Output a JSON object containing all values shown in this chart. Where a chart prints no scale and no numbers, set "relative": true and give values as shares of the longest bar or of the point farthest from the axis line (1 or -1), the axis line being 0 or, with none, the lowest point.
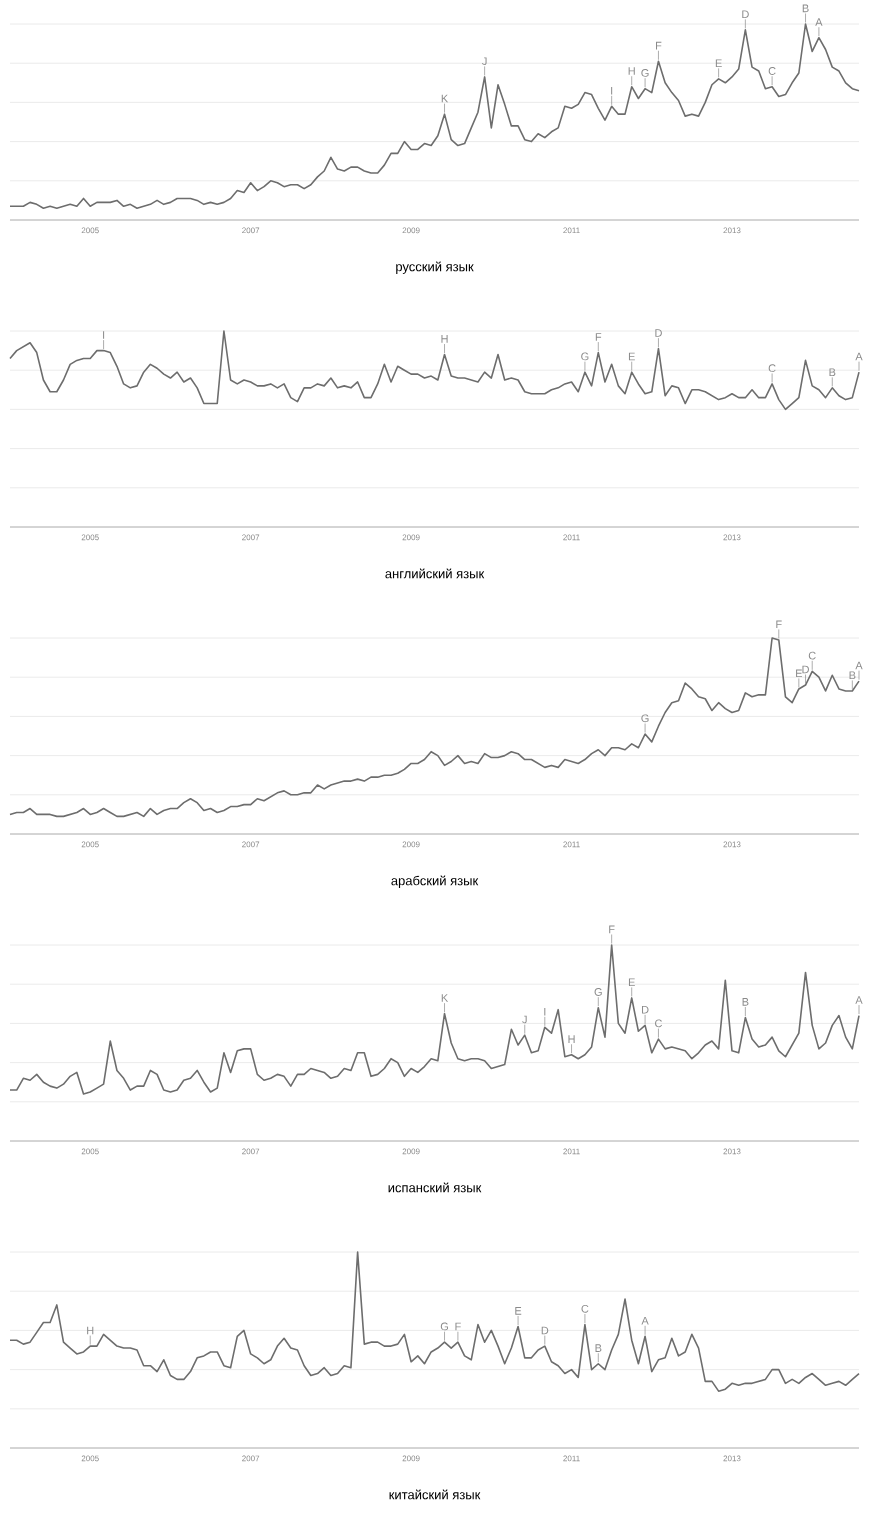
{
  "chart_data": [
    {
      "type": "line",
      "title": "русский язык",
      "relative": true,
      "grid": "y",
      "color": "#6d6d6d",
      "xlim": [
        "2004-01",
        "2014-08"
      ],
      "xticks": [
        "2005",
        "2007",
        "2009",
        "2011",
        "2013"
      ],
      "x": [
        "2004-01",
        "2004-02",
        "2004-03",
        "2004-04",
        "2004-05",
        "2004-06",
        "2004-07",
        "2004-08",
        "2004-09",
        "2004-10",
        "2004-11",
        "2004-12",
        "2005-01",
        "2005-02",
        "2005-03",
        "2005-04",
        "2005-05",
        "2005-06",
        "2005-07",
        "2005-08",
        "2005-09",
        "2005-10",
        "2005-11",
        "2005-12",
        "2006-01",
        "2006-02",
        "2006-03",
        "2006-04",
        "2006-05",
        "2006-06",
        "2006-07",
        "2006-08",
        "2006-09",
        "2006-10",
        "2006-11",
        "2006-12",
        "2007-01",
        "2007-02",
        "2007-03",
        "2007-04",
        "2007-05",
        "2007-06",
        "2007-07",
        "2007-08",
        "2007-09",
        "2007-10",
        "2007-11",
        "2007-12",
        "2008-01",
        "2008-02",
        "2008-03",
        "2008-04",
        "2008-05",
        "2008-06",
        "2008-07",
        "2008-08",
        "2008-09",
        "2008-10",
        "2008-11",
        "2008-12",
        "2009-01",
        "2009-02",
        "2009-03",
        "2009-04",
        "2009-05",
        "2009-06",
        "2009-07",
        "2009-08",
        "2009-09",
        "2009-10",
        "2009-11",
        "2009-12",
        "2010-01",
        "2010-02",
        "2010-03",
        "2010-04",
        "2010-05",
        "2010-06",
        "2010-07",
        "2010-08",
        "2010-09",
        "2010-10",
        "2010-11",
        "2010-12",
        "2011-01",
        "2011-02",
        "2011-03",
        "2011-04",
        "2011-05",
        "2011-06",
        "2011-07",
        "2011-08",
        "2011-09",
        "2011-10",
        "2011-11",
        "2011-12",
        "2012-01",
        "2012-02",
        "2012-03",
        "2012-04",
        "2012-05",
        "2012-06",
        "2012-07",
        "2012-08",
        "2012-09",
        "2012-10",
        "2012-11",
        "2012-12",
        "2013-01",
        "2013-02",
        "2013-03",
        "2013-04",
        "2013-05",
        "2013-06",
        "2013-07",
        "2013-08",
        "2013-09",
        "2013-10",
        "2013-11",
        "2013-12",
        "2014-01",
        "2014-02",
        "2014-03",
        "2014-04",
        "2014-05",
        "2014-06",
        "2014-07",
        "2014-08"
      ],
      "values": [
        0.07,
        0.07,
        0.07,
        0.09,
        0.08,
        0.06,
        0.07,
        0.06,
        0.07,
        0.08,
        0.07,
        0.11,
        0.07,
        0.09,
        0.09,
        0.09,
        0.1,
        0.07,
        0.08,
        0.06,
        0.07,
        0.08,
        0.1,
        0.08,
        0.09,
        0.11,
        0.11,
        0.11,
        0.1,
        0.08,
        0.09,
        0.08,
        0.09,
        0.11,
        0.15,
        0.14,
        0.19,
        0.15,
        0.17,
        0.2,
        0.19,
        0.17,
        0.18,
        0.18,
        0.16,
        0.18,
        0.22,
        0.25,
        0.32,
        0.26,
        0.25,
        0.27,
        0.27,
        0.25,
        0.24,
        0.24,
        0.28,
        0.34,
        0.34,
        0.4,
        0.36,
        0.36,
        0.39,
        0.38,
        0.43,
        0.54,
        0.41,
        0.38,
        0.39,
        0.47,
        0.55,
        0.73,
        0.47,
        0.69,
        0.59,
        0.48,
        0.48,
        0.41,
        0.4,
        0.44,
        0.42,
        0.45,
        0.47,
        0.58,
        0.57,
        0.59,
        0.65,
        0.64,
        0.57,
        0.51,
        0.58,
        0.54,
        0.54,
        0.68,
        0.62,
        0.67,
        0.65,
        0.81,
        0.7,
        0.65,
        0.61,
        0.53,
        0.54,
        0.53,
        0.6,
        0.69,
        0.72,
        0.7,
        0.73,
        0.77,
        0.97,
        0.78,
        0.76,
        0.67,
        0.68,
        0.63,
        0.64,
        0.7,
        0.75,
        1.0,
        0.86,
        0.93,
        0.87,
        0.78,
        0.76,
        0.7,
        0.67,
        0.66
      ],
      "annotations": [
        {
          "text": "K",
          "x": "2009-06",
          "y": 0.54
        },
        {
          "text": "J",
          "x": "2009-12",
          "y": 0.73
        },
        {
          "text": "I",
          "x": "2011-07",
          "y": 0.58
        },
        {
          "text": "H",
          "x": "2011-10",
          "y": 0.68
        },
        {
          "text": "G",
          "x": "2011-12",
          "y": 0.67
        },
        {
          "text": "F",
          "x": "2012-02",
          "y": 0.81
        },
        {
          "text": "E",
          "x": "2012-11",
          "y": 0.72
        },
        {
          "text": "D",
          "x": "2013-03",
          "y": 0.97
        },
        {
          "text": "C",
          "x": "2013-07",
          "y": 0.68
        },
        {
          "text": "B",
          "x": "2013-12",
          "y": 1.0
        },
        {
          "text": "A",
          "x": "2014-02",
          "y": 0.93
        }
      ]
    },
    {
      "type": "line",
      "title": "английский язык",
      "relative": true,
      "grid": "y",
      "color": "#6d6d6d",
      "xlim": [
        "2004-01",
        "2014-08"
      ],
      "xticks": [
        "2005",
        "2007",
        "2009",
        "2011",
        "2013"
      ],
      "x": [
        "2004-01",
        "2004-02",
        "2004-03",
        "2004-04",
        "2004-05",
        "2004-06",
        "2004-07",
        "2004-08",
        "2004-09",
        "2004-10",
        "2004-11",
        "2004-12",
        "2005-01",
        "2005-02",
        "2005-03",
        "2005-04",
        "2005-05",
        "2005-06",
        "2005-07",
        "2005-08",
        "2005-09",
        "2005-10",
        "2005-11",
        "2005-12",
        "2006-01",
        "2006-02",
        "2006-03",
        "2006-04",
        "2006-05",
        "2006-06",
        "2006-07",
        "2006-08",
        "2006-09",
        "2006-10",
        "2006-11",
        "2006-12",
        "2007-01",
        "2007-02",
        "2007-03",
        "2007-04",
        "2007-05",
        "2007-06",
        "2007-07",
        "2007-08",
        "2007-09",
        "2007-10",
        "2007-11",
        "2007-12",
        "2008-01",
        "2008-02",
        "2008-03",
        "2008-04",
        "2008-05",
        "2008-06",
        "2008-07",
        "2008-08",
        "2008-09",
        "2008-10",
        "2008-11",
        "2008-12",
        "2009-01",
        "2009-02",
        "2009-03",
        "2009-04",
        "2009-05",
        "2009-06",
        "2009-07",
        "2009-08",
        "2009-09",
        "2009-10",
        "2009-11",
        "2009-12",
        "2010-01",
        "2010-02",
        "2010-03",
        "2010-04",
        "2010-05",
        "2010-06",
        "2010-07",
        "2010-08",
        "2010-09",
        "2010-10",
        "2010-11",
        "2010-12",
        "2011-01",
        "2011-02",
        "2011-03",
        "2011-04",
        "2011-05",
        "2011-06",
        "2011-07",
        "2011-08",
        "2011-09",
        "2011-10",
        "2011-11",
        "2011-12",
        "2012-01",
        "2012-02",
        "2012-03",
        "2012-04",
        "2012-05",
        "2012-06",
        "2012-07",
        "2012-08",
        "2012-09",
        "2012-10",
        "2012-11",
        "2012-12",
        "2013-01",
        "2013-02",
        "2013-03",
        "2013-04",
        "2013-05",
        "2013-06",
        "2013-07",
        "2013-08",
        "2013-09",
        "2013-10",
        "2013-11",
        "2013-12",
        "2014-01",
        "2014-02",
        "2014-03",
        "2014-04",
        "2014-05",
        "2014-06",
        "2014-07",
        "2014-08"
      ],
      "values": [
        0.86,
        0.9,
        0.92,
        0.94,
        0.89,
        0.75,
        0.69,
        0.69,
        0.75,
        0.83,
        0.85,
        0.86,
        0.86,
        0.9,
        0.9,
        0.89,
        0.82,
        0.73,
        0.71,
        0.72,
        0.79,
        0.83,
        0.81,
        0.78,
        0.76,
        0.79,
        0.74,
        0.76,
        0.71,
        0.63,
        0.63,
        0.63,
        1.0,
        0.75,
        0.73,
        0.75,
        0.74,
        0.72,
        0.72,
        0.73,
        0.71,
        0.73,
        0.66,
        0.64,
        0.71,
        0.71,
        0.73,
        0.72,
        0.76,
        0.71,
        0.72,
        0.71,
        0.74,
        0.66,
        0.66,
        0.73,
        0.83,
        0.74,
        0.82,
        0.8,
        0.78,
        0.78,
        0.76,
        0.77,
        0.75,
        0.88,
        0.77,
        0.76,
        0.76,
        0.75,
        0.74,
        0.79,
        0.76,
        0.88,
        0.75,
        0.76,
        0.75,
        0.69,
        0.68,
        0.68,
        0.68,
        0.7,
        0.71,
        0.73,
        0.74,
        0.69,
        0.79,
        0.72,
        0.89,
        0.74,
        0.83,
        0.72,
        0.68,
        0.79,
        0.73,
        0.68,
        0.69,
        0.91,
        0.67,
        0.72,
        0.71,
        0.63,
        0.7,
        0.7,
        0.69,
        0.67,
        0.65,
        0.66,
        0.68,
        0.66,
        0.66,
        0.7,
        0.66,
        0.66,
        0.73,
        0.65,
        0.6,
        0.63,
        0.66,
        0.85,
        0.72,
        0.7,
        0.66,
        0.71,
        0.67,
        0.65,
        0.66,
        0.79
      ],
      "annotations": [
        {
          "text": "I",
          "x": "2005-03",
          "y": 0.9
        },
        {
          "text": "H",
          "x": "2009-06",
          "y": 0.88
        },
        {
          "text": "G",
          "x": "2011-03",
          "y": 0.79
        },
        {
          "text": "F",
          "x": "2011-05",
          "y": 0.89
        },
        {
          "text": "E",
          "x": "2011-10",
          "y": 0.79
        },
        {
          "text": "D",
          "x": "2012-02",
          "y": 0.91
        },
        {
          "text": "C",
          "x": "2013-07",
          "y": 0.73
        },
        {
          "text": "B",
          "x": "2014-04",
          "y": 0.71
        },
        {
          "text": "A",
          "x": "2014-08",
          "y": 0.79
        }
      ]
    },
    {
      "type": "line",
      "title": "арабский язык",
      "relative": true,
      "grid": "y",
      "color": "#6d6d6d",
      "xlim": [
        "2004-01",
        "2014-08"
      ],
      "xticks": [
        "2005",
        "2007",
        "2009",
        "2011",
        "2013"
      ],
      "x": [
        "2004-01",
        "2004-02",
        "2004-03",
        "2004-04",
        "2004-05",
        "2004-06",
        "2004-07",
        "2004-08",
        "2004-09",
        "2004-10",
        "2004-11",
        "2004-12",
        "2005-01",
        "2005-02",
        "2005-03",
        "2005-04",
        "2005-05",
        "2005-06",
        "2005-07",
        "2005-08",
        "2005-09",
        "2005-10",
        "2005-11",
        "2005-12",
        "2006-01",
        "2006-02",
        "2006-03",
        "2006-04",
        "2006-05",
        "2006-06",
        "2006-07",
        "2006-08",
        "2006-09",
        "2006-10",
        "2006-11",
        "2006-12",
        "2007-01",
        "2007-02",
        "2007-03",
        "2007-04",
        "2007-05",
        "2007-06",
        "2007-07",
        "2007-08",
        "2007-09",
        "2007-10",
        "2007-11",
        "2007-12",
        "2008-01",
        "2008-02",
        "2008-03",
        "2008-04",
        "2008-05",
        "2008-06",
        "2008-07",
        "2008-08",
        "2008-09",
        "2008-10",
        "2008-11",
        "2008-12",
        "2009-01",
        "2009-02",
        "2009-03",
        "2009-04",
        "2009-05",
        "2009-06",
        "2009-07",
        "2009-08",
        "2009-09",
        "2009-10",
        "2009-11",
        "2009-12",
        "2010-01",
        "2010-02",
        "2010-03",
        "2010-04",
        "2010-05",
        "2010-06",
        "2010-07",
        "2010-08",
        "2010-09",
        "2010-10",
        "2010-11",
        "2010-12",
        "2011-01",
        "2011-02",
        "2011-03",
        "2011-04",
        "2011-05",
        "2011-06",
        "2011-07",
        "2011-08",
        "2011-09",
        "2011-10",
        "2011-11",
        "2011-12",
        "2012-01",
        "2012-02",
        "2012-03",
        "2012-04",
        "2012-05",
        "2012-06",
        "2012-07",
        "2012-08",
        "2012-09",
        "2012-10",
        "2012-11",
        "2012-12",
        "2013-01",
        "2013-02",
        "2013-03",
        "2013-04",
        "2013-05",
        "2013-06",
        "2013-07",
        "2013-08",
        "2013-09",
        "2013-10",
        "2013-11",
        "2013-12",
        "2014-01",
        "2014-02",
        "2014-03",
        "2014-04",
        "2014-05",
        "2014-06",
        "2014-07",
        "2014-08"
      ],
      "values": [
        0.1,
        0.11,
        0.11,
        0.13,
        0.1,
        0.1,
        0.1,
        0.09,
        0.09,
        0.1,
        0.11,
        0.13,
        0.1,
        0.11,
        0.13,
        0.11,
        0.09,
        0.09,
        0.1,
        0.11,
        0.09,
        0.13,
        0.1,
        0.12,
        0.13,
        0.13,
        0.16,
        0.18,
        0.16,
        0.12,
        0.13,
        0.11,
        0.12,
        0.14,
        0.14,
        0.15,
        0.15,
        0.18,
        0.17,
        0.19,
        0.21,
        0.22,
        0.2,
        0.2,
        0.21,
        0.21,
        0.25,
        0.23,
        0.25,
        0.26,
        0.27,
        0.27,
        0.28,
        0.27,
        0.29,
        0.29,
        0.3,
        0.3,
        0.31,
        0.33,
        0.36,
        0.36,
        0.38,
        0.42,
        0.4,
        0.35,
        0.37,
        0.4,
        0.36,
        0.37,
        0.36,
        0.41,
        0.39,
        0.39,
        0.4,
        0.42,
        0.41,
        0.38,
        0.38,
        0.36,
        0.34,
        0.35,
        0.34,
        0.38,
        0.37,
        0.36,
        0.38,
        0.41,
        0.43,
        0.4,
        0.44,
        0.44,
        0.43,
        0.46,
        0.44,
        0.51,
        0.47,
        0.55,
        0.62,
        0.67,
        0.68,
        0.77,
        0.74,
        0.7,
        0.69,
        0.63,
        0.67,
        0.64,
        0.62,
        0.63,
        0.72,
        0.7,
        0.71,
        0.71,
        1.0,
        0.99,
        0.7,
        0.67,
        0.74,
        0.76,
        0.83,
        0.8,
        0.73,
        0.81,
        0.74,
        0.73,
        0.73,
        0.78
      ],
      "annotations": [
        {
          "text": "G",
          "x": "2011-12",
          "y": 0.51
        },
        {
          "text": "F",
          "x": "2013-08",
          "y": 0.99
        },
        {
          "text": "E",
          "x": "2013-11",
          "y": 0.74
        },
        {
          "text": "D",
          "x": "2013-12",
          "y": 0.76
        },
        {
          "text": "C",
          "x": "2014-01",
          "y": 0.83
        },
        {
          "text": "B",
          "x": "2014-07",
          "y": 0.73
        },
        {
          "text": "A",
          "x": "2014-08",
          "y": 0.78
        }
      ]
    },
    {
      "type": "line",
      "title": "испанский язык",
      "relative": true,
      "grid": "y",
      "color": "#6d6d6d",
      "xlim": [
        "2004-01",
        "2014-08"
      ],
      "xticks": [
        "2005",
        "2007",
        "2009",
        "2011",
        "2013"
      ],
      "x": [
        "2004-01",
        "2004-02",
        "2004-03",
        "2004-04",
        "2004-05",
        "2004-06",
        "2004-07",
        "2004-08",
        "2004-09",
        "2004-10",
        "2004-11",
        "2004-12",
        "2005-01",
        "2005-02",
        "2005-03",
        "2005-04",
        "2005-05",
        "2005-06",
        "2005-07",
        "2005-08",
        "2005-09",
        "2005-10",
        "2005-11",
        "2005-12",
        "2006-01",
        "2006-02",
        "2006-03",
        "2006-04",
        "2006-05",
        "2006-06",
        "2006-07",
        "2006-08",
        "2006-09",
        "2006-10",
        "2006-11",
        "2006-12",
        "2007-01",
        "2007-02",
        "2007-03",
        "2007-04",
        "2007-05",
        "2007-06",
        "2007-07",
        "2007-08",
        "2007-09",
        "2007-10",
        "2007-11",
        "2007-12",
        "2008-01",
        "2008-02",
        "2008-03",
        "2008-04",
        "2008-05",
        "2008-06",
        "2008-07",
        "2008-08",
        "2008-09",
        "2008-10",
        "2008-11",
        "2008-12",
        "2009-01",
        "2009-02",
        "2009-03",
        "2009-04",
        "2009-05",
        "2009-06",
        "2009-07",
        "2009-08",
        "2009-09",
        "2009-10",
        "2009-11",
        "2009-12",
        "2010-01",
        "2010-02",
        "2010-03",
        "2010-04",
        "2010-05",
        "2010-06",
        "2010-07",
        "2010-08",
        "2010-09",
        "2010-10",
        "2010-11",
        "2010-12",
        "2011-01",
        "2011-02",
        "2011-03",
        "2011-04",
        "2011-05",
        "2011-06",
        "2011-07",
        "2011-08",
        "2011-09",
        "2011-10",
        "2011-11",
        "2011-12",
        "2012-01",
        "2012-02",
        "2012-03",
        "2012-04",
        "2012-05",
        "2012-06",
        "2012-07",
        "2012-08",
        "2012-09",
        "2012-10",
        "2012-11",
        "2012-12",
        "2013-01",
        "2013-02",
        "2013-03",
        "2013-04",
        "2013-05",
        "2013-06",
        "2013-07",
        "2013-08",
        "2013-09",
        "2013-10",
        "2013-11",
        "2013-12",
        "2014-01",
        "2014-02",
        "2014-03",
        "2014-04",
        "2014-05",
        "2014-06",
        "2014-07",
        "2014-08"
      ],
      "values": [
        0.26,
        0.26,
        0.32,
        0.31,
        0.34,
        0.3,
        0.28,
        0.27,
        0.29,
        0.33,
        0.35,
        0.24,
        0.25,
        0.27,
        0.29,
        0.51,
        0.36,
        0.32,
        0.26,
        0.28,
        0.28,
        0.36,
        0.34,
        0.26,
        0.25,
        0.26,
        0.31,
        0.32,
        0.36,
        0.3,
        0.25,
        0.27,
        0.45,
        0.35,
        0.46,
        0.47,
        0.47,
        0.34,
        0.31,
        0.32,
        0.34,
        0.33,
        0.28,
        0.34,
        0.34,
        0.37,
        0.36,
        0.35,
        0.32,
        0.33,
        0.37,
        0.36,
        0.45,
        0.45,
        0.33,
        0.34,
        0.37,
        0.42,
        0.4,
        0.33,
        0.37,
        0.35,
        0.38,
        0.42,
        0.41,
        0.65,
        0.5,
        0.42,
        0.41,
        0.42,
        0.42,
        0.41,
        0.37,
        0.38,
        0.39,
        0.57,
        0.49,
        0.54,
        0.45,
        0.46,
        0.58,
        0.55,
        0.67,
        0.43,
        0.44,
        0.42,
        0.44,
        0.48,
        0.68,
        0.53,
        1.0,
        0.6,
        0.55,
        0.73,
        0.56,
        0.59,
        0.45,
        0.52,
        0.47,
        0.48,
        0.47,
        0.46,
        0.42,
        0.45,
        0.49,
        0.51,
        0.47,
        0.82,
        0.46,
        0.45,
        0.63,
        0.52,
        0.48,
        0.49,
        0.53,
        0.46,
        0.43,
        0.49,
        0.55,
        0.86,
        0.59,
        0.47,
        0.5,
        0.59,
        0.64,
        0.53,
        0.47,
        0.64
      ],
      "annotations": [
        {
          "text": "K",
          "x": "2009-06",
          "y": 0.65
        },
        {
          "text": "J",
          "x": "2010-06",
          "y": 0.54
        },
        {
          "text": "I",
          "x": "2010-09",
          "y": 0.58
        },
        {
          "text": "H",
          "x": "2011-01",
          "y": 0.44
        },
        {
          "text": "G",
          "x": "2011-05",
          "y": 0.68
        },
        {
          "text": "F",
          "x": "2011-07",
          "y": 1.0
        },
        {
          "text": "E",
          "x": "2011-10",
          "y": 0.73
        },
        {
          "text": "D",
          "x": "2011-12",
          "y": 0.59
        },
        {
          "text": "C",
          "x": "2012-02",
          "y": 0.52
        },
        {
          "text": "B",
          "x": "2013-03",
          "y": 0.63
        },
        {
          "text": "A",
          "x": "2014-08",
          "y": 0.64
        }
      ]
    },
    {
      "type": "line",
      "title": "китайский язык",
      "relative": true,
      "grid": "y",
      "color": "#6d6d6d",
      "xlim": [
        "2004-01",
        "2014-08"
      ],
      "xticks": [
        "2005",
        "2007",
        "2009",
        "2011",
        "2013"
      ],
      "x": [
        "2004-01",
        "2004-02",
        "2004-03",
        "2004-04",
        "2004-05",
        "2004-06",
        "2004-07",
        "2004-08",
        "2004-09",
        "2004-10",
        "2004-11",
        "2004-12",
        "2005-01",
        "2005-02",
        "2005-03",
        "2005-04",
        "2005-05",
        "2005-06",
        "2005-07",
        "2005-08",
        "2005-09",
        "2005-10",
        "2005-11",
        "2005-12",
        "2006-01",
        "2006-02",
        "2006-03",
        "2006-04",
        "2006-05",
        "2006-06",
        "2006-07",
        "2006-08",
        "2006-09",
        "2006-10",
        "2006-11",
        "2006-12",
        "2007-01",
        "2007-02",
        "2007-03",
        "2007-04",
        "2007-05",
        "2007-06",
        "2007-07",
        "2007-08",
        "2007-09",
        "2007-10",
        "2007-11",
        "2007-12",
        "2008-01",
        "2008-02",
        "2008-03",
        "2008-04",
        "2008-05",
        "2008-06",
        "2008-07",
        "2008-08",
        "2008-09",
        "2008-10",
        "2008-11",
        "2008-12",
        "2009-01",
        "2009-02",
        "2009-03",
        "2009-04",
        "2009-05",
        "2009-06",
        "2009-07",
        "2009-08",
        "2009-09",
        "2009-10",
        "2009-11",
        "2009-12",
        "2010-01",
        "2010-02",
        "2010-03",
        "2010-04",
        "2010-05",
        "2010-06",
        "2010-07",
        "2010-08",
        "2010-09",
        "2010-10",
        "2010-11",
        "2010-12",
        "2011-01",
        "2011-02",
        "2011-03",
        "2011-04",
        "2011-05",
        "2011-06",
        "2011-07",
        "2011-08",
        "2011-09",
        "2011-10",
        "2011-11",
        "2011-12",
        "2012-01",
        "2012-02",
        "2012-03",
        "2012-04",
        "2012-05",
        "2012-06",
        "2012-07",
        "2012-08",
        "2012-09",
        "2012-10",
        "2012-11",
        "2012-12",
        "2013-01",
        "2013-02",
        "2013-03",
        "2013-04",
        "2013-05",
        "2013-06",
        "2013-07",
        "2013-08",
        "2013-09",
        "2013-10",
        "2013-11",
        "2013-12",
        "2014-01",
        "2014-02",
        "2014-03",
        "2014-04",
        "2014-05",
        "2014-06",
        "2014-07",
        "2014-08"
      ],
      "values": [
        0.55,
        0.55,
        0.53,
        0.54,
        0.59,
        0.64,
        0.64,
        0.73,
        0.54,
        0.51,
        0.48,
        0.49,
        0.52,
        0.52,
        0.58,
        0.55,
        0.52,
        0.51,
        0.51,
        0.5,
        0.42,
        0.42,
        0.39,
        0.45,
        0.37,
        0.35,
        0.35,
        0.39,
        0.46,
        0.47,
        0.49,
        0.49,
        0.42,
        0.41,
        0.57,
        0.6,
        0.48,
        0.46,
        0.43,
        0.45,
        0.52,
        0.56,
        0.51,
        0.5,
        0.42,
        0.37,
        0.38,
        0.41,
        0.37,
        0.38,
        0.42,
        0.41,
        1.0,
        0.53,
        0.54,
        0.54,
        0.52,
        0.52,
        0.53,
        0.58,
        0.44,
        0.47,
        0.43,
        0.49,
        0.51,
        0.54,
        0.51,
        0.54,
        0.47,
        0.45,
        0.63,
        0.54,
        0.6,
        0.52,
        0.43,
        0.51,
        0.62,
        0.46,
        0.46,
        0.5,
        0.52,
        0.44,
        0.42,
        0.38,
        0.4,
        0.36,
        0.63,
        0.4,
        0.43,
        0.4,
        0.5,
        0.58,
        0.76,
        0.55,
        0.43,
        0.57,
        0.39,
        0.45,
        0.46,
        0.56,
        0.47,
        0.49,
        0.58,
        0.51,
        0.34,
        0.34,
        0.29,
        0.3,
        0.33,
        0.32,
        0.33,
        0.33,
        0.34,
        0.35,
        0.4,
        0.4,
        0.33,
        0.35,
        0.33,
        0.36,
        0.38,
        0.35,
        0.32,
        0.33,
        0.34,
        0.32,
        0.35,
        0.38
      ],
      "annotations": [
        {
          "text": "H",
          "x": "2005-01",
          "y": 0.52
        },
        {
          "text": "G",
          "x": "2009-06",
          "y": 0.54
        },
        {
          "text": "F",
          "x": "2009-08",
          "y": 0.54
        },
        {
          "text": "E",
          "x": "2010-05",
          "y": 0.62
        },
        {
          "text": "D",
          "x": "2010-09",
          "y": 0.52
        },
        {
          "text": "C",
          "x": "2011-03",
          "y": 0.63
        },
        {
          "text": "B",
          "x": "2011-05",
          "y": 0.43
        },
        {
          "text": "A",
          "x": "2011-12",
          "y": 0.57
        }
      ]
    }
  ]
}
